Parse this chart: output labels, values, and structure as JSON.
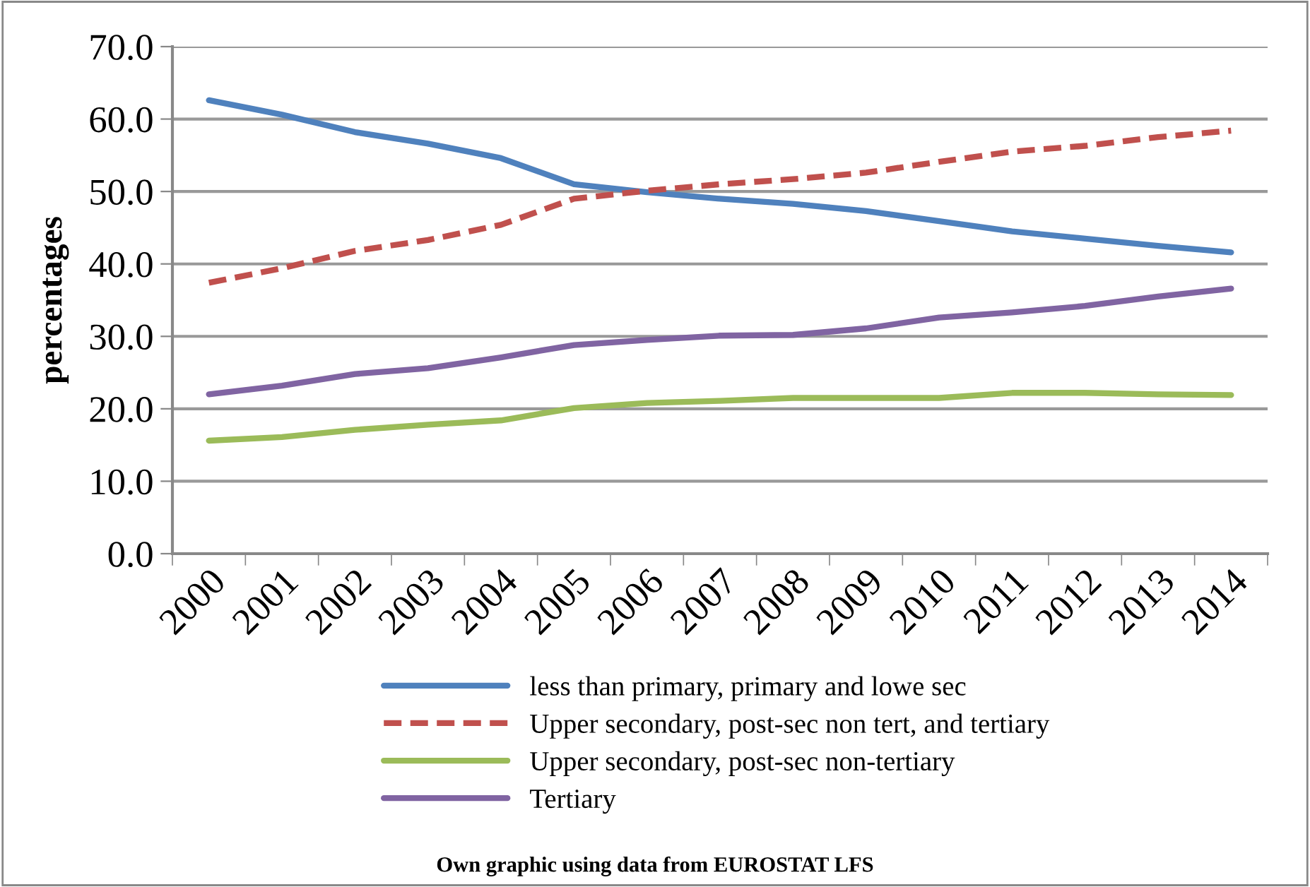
{
  "chart_data": {
    "type": "line",
    "ylabel": "percentages",
    "categories": [
      "2000",
      "2001",
      "2002",
      "2003",
      "2004",
      "2005",
      "2006",
      "2007",
      "2008",
      "2009",
      "2010",
      "2011",
      "2012",
      "2013",
      "2014"
    ],
    "series": [
      {
        "name": "less than primary, primary and lowe sec",
        "color": "#4f81bd",
        "line_style": "solid",
        "values": [
          62.6,
          60.6,
          58.2,
          56.6,
          54.6,
          51.0,
          49.9,
          49.0,
          48.3,
          47.3,
          45.9,
          44.5,
          43.5,
          42.5,
          41.6
        ]
      },
      {
        "name": "Upper secondary, post-sec non tert, and tertiary",
        "color": "#c0504d",
        "line_style": "dashed",
        "values": [
          37.4,
          39.4,
          41.8,
          43.3,
          45.4,
          49.0,
          50.1,
          51.0,
          51.7,
          52.6,
          54.1,
          55.5,
          56.3,
          57.5,
          58.4
        ]
      },
      {
        "name": "Upper secondary, post-sec non-tertiary",
        "color": "#9bbb59",
        "line_style": "solid",
        "values": [
          15.6,
          16.1,
          17.1,
          17.8,
          18.4,
          20.1,
          20.8,
          21.1,
          21.5,
          21.5,
          21.5,
          22.2,
          22.2,
          22.0,
          21.9
        ]
      },
      {
        "name": "Tertiary",
        "color": "#8064a2",
        "line_style": "solid",
        "values": [
          22.0,
          23.2,
          24.8,
          25.6,
          27.1,
          28.8,
          29.5,
          30.1,
          30.2,
          31.1,
          32.6,
          33.3,
          34.2,
          35.5,
          36.6
        ]
      }
    ],
    "ylim": [
      0,
      70
    ],
    "yticks": [
      {
        "value": 0,
        "label": "0.0"
      },
      {
        "value": 10,
        "label": "10.0"
      },
      {
        "value": 20,
        "label": "20.0"
      },
      {
        "value": 30,
        "label": "30.0"
      },
      {
        "value": 40,
        "label": "40.0"
      },
      {
        "value": 50,
        "label": "50.0"
      },
      {
        "value": 60,
        "label": "60.0"
      },
      {
        "value": 70,
        "label": "70.0"
      }
    ],
    "grid": "y",
    "legend": "bottom",
    "marker": "none",
    "annotations": [
      "Own graphic using data from EUROSTAT LFS"
    ]
  }
}
